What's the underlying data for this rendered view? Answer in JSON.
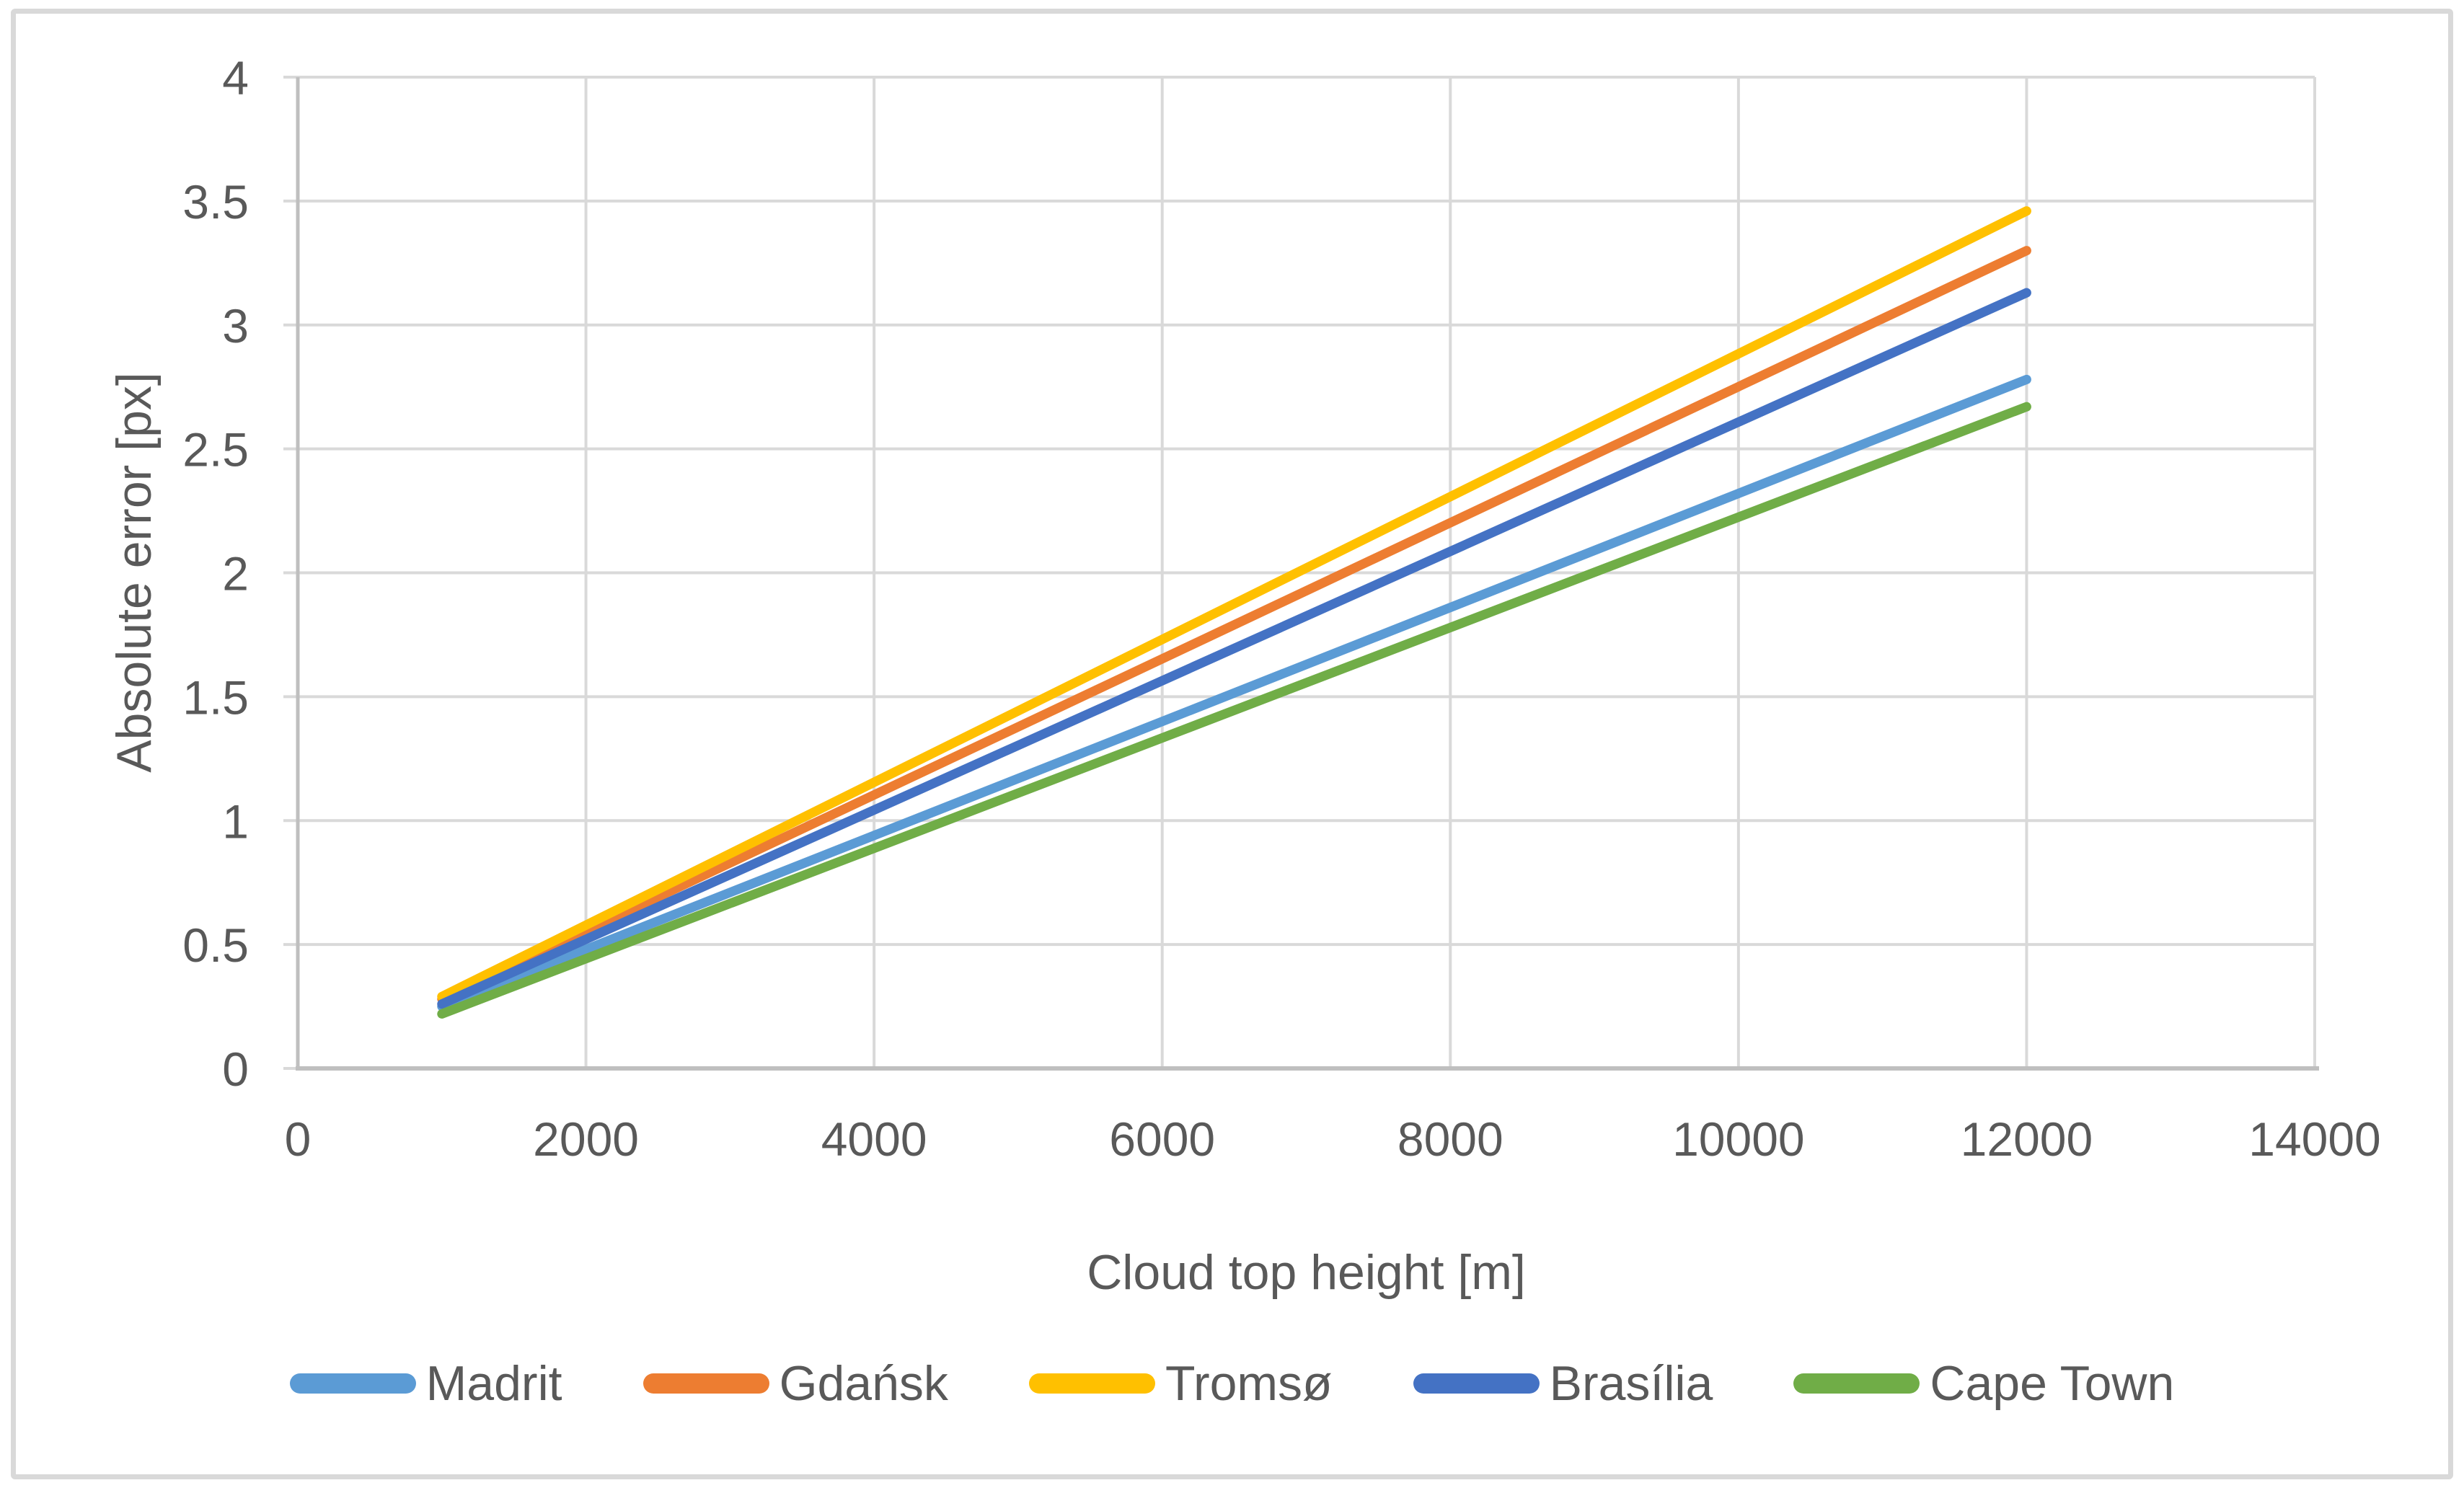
{
  "chart_data": {
    "type": "line",
    "title": "",
    "xlabel": "Cloud top height [m]",
    "ylabel": "Absolute error [px]",
    "x": [
      1000,
      12000
    ],
    "series": [
      {
        "name": "Madrit",
        "color": "#5B9BD5",
        "values": [
          0.25,
          2.78
        ]
      },
      {
        "name": "Gdańsk",
        "color": "#ED7D31",
        "values": [
          0.28,
          3.3
        ]
      },
      {
        "name": "Tromsø",
        "color": "#FFC000",
        "values": [
          0.29,
          3.46
        ]
      },
      {
        "name": "Brasília",
        "color": "#4472C4",
        "values": [
          0.26,
          3.13
        ]
      },
      {
        "name": "Cape Town",
        "color": "#70AD47",
        "values": [
          0.22,
          2.67
        ]
      }
    ],
    "xlim": [
      0,
      14000
    ],
    "ylim": [
      0,
      4
    ],
    "x_ticks": [
      0,
      2000,
      4000,
      6000,
      8000,
      10000,
      12000,
      14000
    ],
    "y_ticks": [
      0,
      0.5,
      1,
      1.5,
      2,
      2.5,
      3,
      3.5,
      4
    ],
    "grid": true,
    "legend_position": "bottom"
  },
  "styles": {
    "background": "#FFFFFF",
    "border_color": "#D9D9D9",
    "gridline_color": "#D9D9D9",
    "axis_color": "#BFBFBF",
    "text_color": "#595959"
  }
}
